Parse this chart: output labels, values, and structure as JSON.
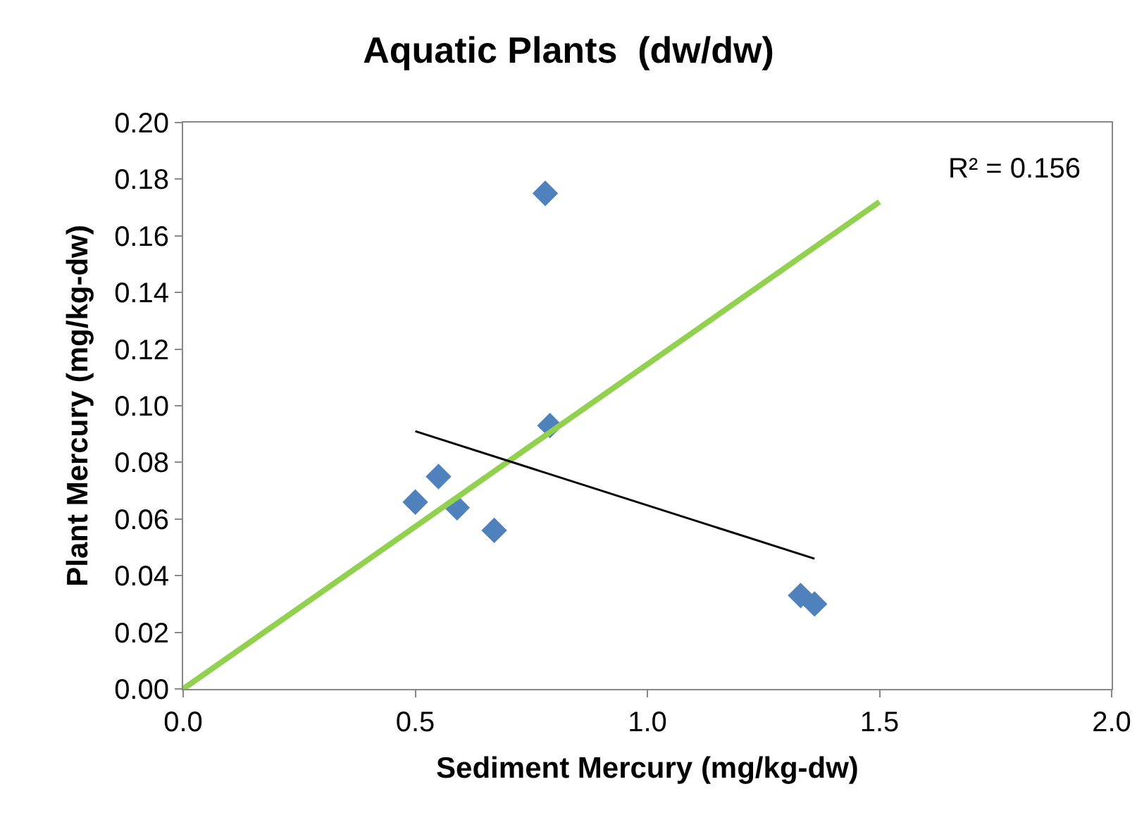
{
  "chart_data": {
    "type": "scatter",
    "title": "Aquatic Plants  (dw/dw)",
    "xlabel": "Sediment Mercury (mg/kg-dw)",
    "ylabel": "Plant Mercury (mg/kg-dw)",
    "xlim": [
      0,
      2
    ],
    "xticks": [
      {
        "value": 0,
        "label": "0.0"
      },
      {
        "value": 0.5,
        "label": "0.5"
      },
      {
        "value": 1,
        "label": "1.0"
      },
      {
        "value": 1.5,
        "label": "1.5"
      },
      {
        "value": 2,
        "label": "2.0"
      }
    ],
    "ylim": [
      0,
      0.2
    ],
    "yticks": [
      {
        "value": 0,
        "label": "0.00"
      },
      {
        "value": 0.02,
        "label": "0.02"
      },
      {
        "value": 0.04,
        "label": "0.04"
      },
      {
        "value": 0.06,
        "label": "0.06"
      },
      {
        "value": 0.08,
        "label": "0.08"
      },
      {
        "value": 0.1,
        "label": "0.10"
      },
      {
        "value": 0.12,
        "label": "0.12"
      },
      {
        "value": 0.14,
        "label": "0.14"
      },
      {
        "value": 0.16,
        "label": "0.16"
      },
      {
        "value": 0.18,
        "label": "0.18"
      },
      {
        "value": 0.2,
        "label": "0.20"
      }
    ],
    "grid": false,
    "series": [
      {
        "marker": "diamond",
        "color": "#4f81bd",
        "x": [
          0.5,
          0.55,
          0.59,
          0.67,
          0.78,
          0.79,
          1.33,
          1.36
        ],
        "values": [
          0.066,
          0.075,
          0.064,
          0.056,
          0.175,
          0.093,
          0.033,
          0.03
        ]
      },
      {
        "type": "line",
        "color": "#92d050",
        "x": [
          0,
          1.5
        ],
        "values": [
          0,
          0.172
        ]
      },
      {
        "type": "line",
        "color": "#000000",
        "x": [
          0.5,
          1.36
        ],
        "values": [
          0.091,
          0.046
        ]
      }
    ],
    "annotations": [
      "R² = 0.156"
    ]
  }
}
